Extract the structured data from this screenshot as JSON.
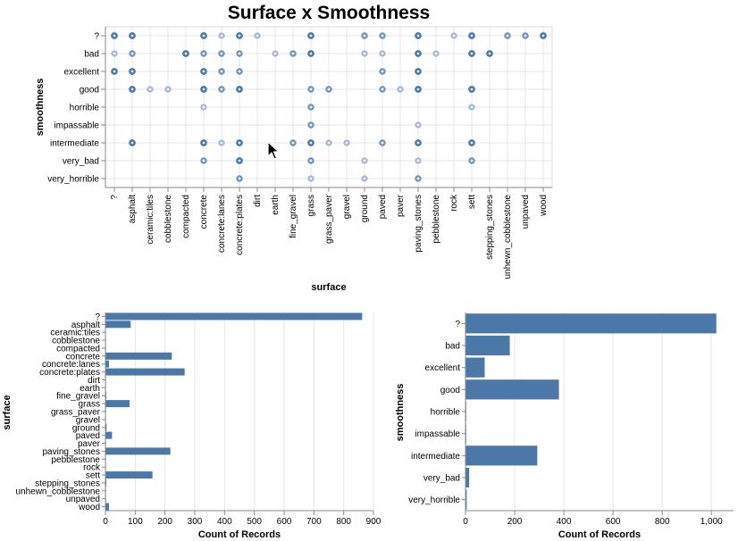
{
  "colors": {
    "mark": "#4c78a8"
  },
  "chart_data": [
    {
      "type": "scatter",
      "title": "Surface x Smoothness",
      "xlabel": "surface",
      "ylabel": "smoothness",
      "x_categories": [
        "?",
        "asphalt",
        "ceramic:tiles",
        "cobblestone",
        "compacted",
        "concrete",
        "concrete:lanes",
        "concrete:plates",
        "dirt",
        "earth",
        "fine_gravel",
        "grass",
        "grass_paver",
        "gravel",
        "ground",
        "paved",
        "paver",
        "paving_stones",
        "pebblestone",
        "rock",
        "sett",
        "stepping_stones",
        "unhewn_cobblestone",
        "unpaved",
        "wood"
      ],
      "y_categories": [
        "?",
        "bad",
        "excellent",
        "good",
        "horrible",
        "impassable",
        "intermediate",
        "very_bad",
        "very_horrible"
      ],
      "points": [
        [
          "?",
          "?",
          3
        ],
        [
          "asphalt",
          "?",
          3
        ],
        [
          "concrete",
          "?",
          3
        ],
        [
          "concrete:lanes",
          "?",
          1
        ],
        [
          "concrete:plates",
          "?",
          3
        ],
        [
          "dirt",
          "?",
          1
        ],
        [
          "grass",
          "?",
          3
        ],
        [
          "ground",
          "?",
          2
        ],
        [
          "paved",
          "?",
          2
        ],
        [
          "paving_stones",
          "?",
          3
        ],
        [
          "rock",
          "?",
          1
        ],
        [
          "sett",
          "?",
          3
        ],
        [
          "unhewn_cobblestone",
          "?",
          2
        ],
        [
          "unpaved",
          "?",
          2
        ],
        [
          "wood",
          "?",
          3
        ],
        [
          "?",
          "bad",
          1
        ],
        [
          "asphalt",
          "bad",
          2
        ],
        [
          "compacted",
          "bad",
          3
        ],
        [
          "concrete",
          "bad",
          2
        ],
        [
          "concrete:lanes",
          "bad",
          2
        ],
        [
          "concrete:plates",
          "bad",
          2
        ],
        [
          "earth",
          "bad",
          1
        ],
        [
          "fine_gravel",
          "bad",
          2
        ],
        [
          "grass",
          "bad",
          3
        ],
        [
          "ground",
          "bad",
          1
        ],
        [
          "paved",
          "bad",
          1
        ],
        [
          "paving_stones",
          "bad",
          3
        ],
        [
          "pebblestone",
          "bad",
          1
        ],
        [
          "sett",
          "bad",
          3
        ],
        [
          "stepping_stones",
          "bad",
          3
        ],
        [
          "?",
          "excellent",
          3
        ],
        [
          "asphalt",
          "excellent",
          3
        ],
        [
          "concrete",
          "excellent",
          3
        ],
        [
          "concrete:lanes",
          "excellent",
          2
        ],
        [
          "concrete:plates",
          "excellent",
          2
        ],
        [
          "paved",
          "excellent",
          2
        ],
        [
          "paving_stones",
          "excellent",
          3
        ],
        [
          "asphalt",
          "good",
          3
        ],
        [
          "ceramic:tiles",
          "good",
          1
        ],
        [
          "cobblestone",
          "good",
          1
        ],
        [
          "concrete",
          "good",
          3
        ],
        [
          "concrete:lanes",
          "good",
          2
        ],
        [
          "concrete:plates",
          "good",
          3
        ],
        [
          "grass",
          "good",
          2
        ],
        [
          "grass_paver",
          "good",
          2
        ],
        [
          "paved",
          "good",
          2
        ],
        [
          "paver",
          "good",
          1
        ],
        [
          "paving_stones",
          "good",
          3
        ],
        [
          "sett",
          "good",
          3
        ],
        [
          "concrete",
          "horrible",
          1
        ],
        [
          "grass",
          "horrible",
          2
        ],
        [
          "sett",
          "horrible",
          1
        ],
        [
          "grass",
          "impassable",
          2
        ],
        [
          "paving_stones",
          "impassable",
          1
        ],
        [
          "asphalt",
          "intermediate",
          3
        ],
        [
          "concrete",
          "intermediate",
          3
        ],
        [
          "concrete:lanes",
          "intermediate",
          1
        ],
        [
          "concrete:plates",
          "intermediate",
          3
        ],
        [
          "fine_gravel",
          "intermediate",
          2
        ],
        [
          "grass",
          "intermediate",
          3
        ],
        [
          "grass_paver",
          "intermediate",
          1
        ],
        [
          "gravel",
          "intermediate",
          1
        ],
        [
          "paved",
          "intermediate",
          2
        ],
        [
          "paving_stones",
          "intermediate",
          3
        ],
        [
          "sett",
          "intermediate",
          3
        ],
        [
          "concrete",
          "very_bad",
          2
        ],
        [
          "concrete:plates",
          "very_bad",
          3
        ],
        [
          "grass",
          "very_bad",
          2
        ],
        [
          "ground",
          "very_bad",
          1
        ],
        [
          "paving_stones",
          "very_bad",
          1
        ],
        [
          "sett",
          "very_bad",
          2
        ],
        [
          "concrete:plates",
          "very_horrible",
          2
        ],
        [
          "grass",
          "very_horrible",
          1
        ],
        [
          "ground",
          "very_horrible",
          1
        ],
        [
          "paving_stones",
          "very_horrible",
          2
        ]
      ]
    },
    {
      "type": "bar",
      "orientation": "horizontal",
      "xlabel": "Count of Records",
      "ylabel": "surface",
      "xlim": [
        0,
        900
      ],
      "x_ticks": [
        "0",
        "100",
        "200",
        "300",
        "400",
        "500",
        "600",
        "700",
        "800",
        "900"
      ],
      "x_tick_values": [
        0,
        100,
        200,
        300,
        400,
        500,
        600,
        700,
        800,
        900
      ],
      "categories": [
        "?",
        "asphalt",
        "ceramic:tiles",
        "cobblestone",
        "compacted",
        "concrete",
        "concrete:lanes",
        "concrete:plates",
        "dirt",
        "earth",
        "fine_gravel",
        "grass",
        "grass_paver",
        "gravel",
        "ground",
        "paved",
        "paver",
        "paving_stones",
        "pebblestone",
        "rock",
        "sett",
        "stepping_stones",
        "unhewn_cobblestone",
        "unpaved",
        "wood"
      ],
      "values": [
        862,
        85,
        1,
        1,
        1,
        223,
        12,
        266,
        1,
        1,
        3,
        81,
        2,
        1,
        4,
        22,
        1,
        218,
        1,
        1,
        158,
        3,
        1,
        2,
        12
      ]
    },
    {
      "type": "bar",
      "orientation": "horizontal",
      "xlabel": "Count of Records",
      "ylabel": "smoothness",
      "xlim": [
        0,
        1090
      ],
      "x_ticks": [
        "0",
        "200",
        "400",
        "600",
        "800",
        "1,000"
      ],
      "x_tick_values": [
        0,
        200,
        400,
        600,
        800,
        1000
      ],
      "categories": [
        "?",
        "bad",
        "excellent",
        "good",
        "horrible",
        "impassable",
        "intermediate",
        "very_bad",
        "very_horrible"
      ],
      "values": [
        1020,
        180,
        78,
        380,
        3,
        3,
        292,
        15,
        5
      ]
    }
  ]
}
